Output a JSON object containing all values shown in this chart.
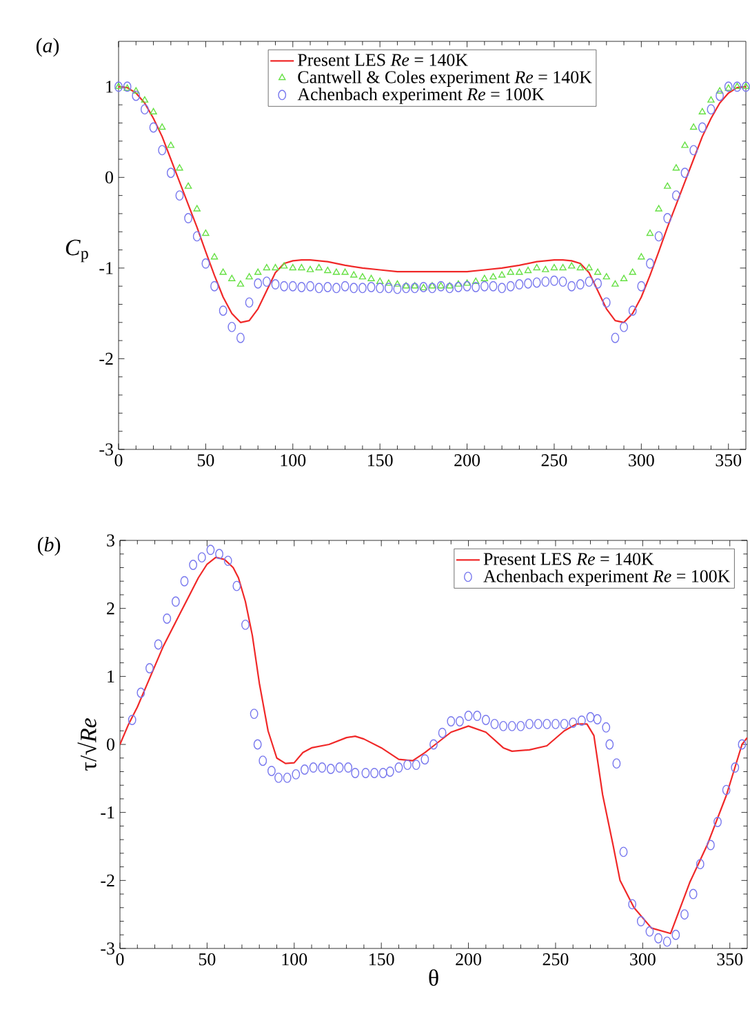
{
  "chart_data": [
    {
      "type": "line",
      "title": "(*a*)",
      "ylabel": "*C*$_{p}$",
      "xlim": [
        0,
        360
      ],
      "xticks": [
        0,
        50,
        100,
        150,
        200,
        250,
        300,
        350
      ],
      "ylim": [
        -3,
        1.5
      ],
      "yticks": [
        -3,
        -2,
        -1,
        0,
        1
      ],
      "legend": "top",
      "grid": false,
      "series": [
        {
          "name": "Present LES *Re* = 140K",
          "color": "#f02828",
          "marker": "none",
          "x": [
            0,
            5,
            10,
            15,
            20,
            25,
            30,
            35,
            40,
            45,
            50,
            55,
            60,
            65,
            70,
            75,
            80,
            85,
            90,
            95,
            100,
            105,
            110,
            120,
            130,
            140,
            150,
            160,
            170,
            180,
            190,
            200,
            210,
            220,
            230,
            240,
            250,
            255,
            260,
            265,
            270,
            275,
            280,
            285,
            290,
            295,
            300,
            305,
            310,
            315,
            320,
            325,
            330,
            335,
            340,
            345,
            350,
            355,
            360
          ],
          "values": [
            1.0,
            0.99,
            0.93,
            0.82,
            0.65,
            0.45,
            0.2,
            -0.05,
            -0.3,
            -0.55,
            -0.82,
            -1.08,
            -1.32,
            -1.5,
            -1.6,
            -1.58,
            -1.45,
            -1.25,
            -1.05,
            -0.95,
            -0.92,
            -0.91,
            -0.91,
            -0.93,
            -0.97,
            -1.0,
            -1.02,
            -1.04,
            -1.04,
            -1.04,
            -1.04,
            -1.04,
            -1.02,
            -1.0,
            -0.97,
            -0.93,
            -0.91,
            -0.91,
            -0.92,
            -0.95,
            -1.05,
            -1.25,
            -1.45,
            -1.58,
            -1.6,
            -1.5,
            -1.32,
            -1.08,
            -0.82,
            -0.55,
            -0.3,
            -0.05,
            0.2,
            0.45,
            0.65,
            0.82,
            0.93,
            0.99,
            1.0
          ]
        },
        {
          "name": "Cantwell & Coles experiment *Re* = 140K",
          "type": "scatter",
          "color": "#66e044",
          "marker": "triangle",
          "x": [
            0,
            5,
            10,
            15,
            20,
            25,
            30,
            35,
            40,
            45,
            50,
            55,
            60,
            65,
            70,
            75,
            80,
            85,
            90,
            95,
            100,
            105,
            110,
            115,
            120,
            125,
            130,
            135,
            140,
            145,
            150,
            155,
            160,
            165,
            170,
            175,
            180,
            185,
            190,
            195,
            200,
            205,
            210,
            215,
            220,
            225,
            230,
            235,
            240,
            245,
            250,
            255,
            260,
            265,
            270,
            275,
            280,
            285,
            290,
            295,
            300,
            305,
            310,
            315,
            320,
            325,
            330,
            335,
            340,
            345,
            350,
            355,
            360
          ],
          "values": [
            1.0,
            0.98,
            0.95,
            0.85,
            0.72,
            0.55,
            0.35,
            0.1,
            -0.1,
            -0.35,
            -0.62,
            -0.88,
            -1.05,
            -1.12,
            -1.18,
            -1.1,
            -1.05,
            -1.0,
            -1.0,
            -0.98,
            -1.0,
            -1.0,
            -1.02,
            -1.0,
            -1.03,
            -1.05,
            -1.05,
            -1.08,
            -1.1,
            -1.12,
            -1.15,
            -1.17,
            -1.18,
            -1.2,
            -1.2,
            -1.22,
            -1.2,
            -1.2,
            -1.2,
            -1.18,
            -1.17,
            -1.15,
            -1.12,
            -1.1,
            -1.08,
            -1.05,
            -1.05,
            -1.03,
            -1.0,
            -1.02,
            -1.0,
            -1.0,
            -0.98,
            -1.0,
            -1.0,
            -1.05,
            -1.1,
            -1.18,
            -1.12,
            -1.05,
            -0.88,
            -0.62,
            -0.35,
            -0.1,
            0.1,
            0.35,
            0.55,
            0.72,
            0.85,
            0.95,
            0.98,
            1.0,
            1.0
          ]
        },
        {
          "name": "Achenbach experiment *Re* = 100K",
          "type": "scatter",
          "color": "#7878ee",
          "marker": "circle",
          "x": [
            0,
            5,
            10,
            15,
            20,
            25,
            30,
            35,
            40,
            45,
            50,
            55,
            60,
            65,
            70,
            75,
            80,
            85,
            90,
            95,
            100,
            105,
            110,
            115,
            120,
            125,
            130,
            135,
            140,
            145,
            150,
            155,
            160,
            165,
            170,
            175,
            180,
            185,
            190,
            195,
            200,
            205,
            210,
            215,
            220,
            225,
            230,
            235,
            240,
            245,
            250,
            255,
            260,
            265,
            270,
            275,
            280,
            285,
            290,
            295,
            300,
            305,
            310,
            315,
            320,
            325,
            330,
            335,
            340,
            345,
            350,
            355,
            360
          ],
          "values": [
            1.0,
            1.0,
            0.9,
            0.75,
            0.55,
            0.3,
            0.05,
            -0.2,
            -0.45,
            -0.65,
            -0.95,
            -1.2,
            -1.47,
            -1.65,
            -1.77,
            -1.38,
            -1.17,
            -1.15,
            -1.18,
            -1.2,
            -1.2,
            -1.21,
            -1.2,
            -1.22,
            -1.21,
            -1.22,
            -1.2,
            -1.22,
            -1.22,
            -1.21,
            -1.22,
            -1.22,
            -1.23,
            -1.22,
            -1.22,
            -1.21,
            -1.22,
            -1.2,
            -1.22,
            -1.21,
            -1.2,
            -1.21,
            -1.2,
            -1.2,
            -1.22,
            -1.2,
            -1.18,
            -1.17,
            -1.16,
            -1.15,
            -1.14,
            -1.15,
            -1.2,
            -1.18,
            -1.15,
            -1.17,
            -1.38,
            -1.77,
            -1.65,
            -1.47,
            -1.2,
            -0.95,
            -0.65,
            -0.45,
            -0.2,
            0.05,
            0.3,
            0.55,
            0.75,
            0.9,
            1.0,
            1.0,
            1.0
          ]
        }
      ]
    },
    {
      "type": "line",
      "title": "(*b*)",
      "xlabel": "θ",
      "ylabel": "τ/√*Re*",
      "xlim": [
        0,
        360
      ],
      "xticks": [
        0,
        50,
        100,
        150,
        200,
        250,
        300,
        350
      ],
      "ylim": [
        -3,
        3
      ],
      "yticks": [
        -3,
        -2,
        -1,
        0,
        1,
        2,
        3
      ],
      "legend": "top right",
      "grid": false,
      "series": [
        {
          "name": "Present LES *Re* = 140K",
          "color": "#f02828",
          "marker": "none",
          "x": [
            0,
            5,
            10,
            15,
            20,
            25,
            30,
            35,
            40,
            45,
            50,
            55,
            60,
            65,
            68,
            72,
            76,
            80,
            85,
            90,
            95,
            100,
            105,
            110,
            120,
            130,
            135,
            140,
            150,
            160,
            168,
            175,
            181,
            190,
            200,
            210,
            220,
            225,
            235,
            245,
            255,
            262,
            268,
            272,
            277,
            283,
            287,
            295,
            305,
            316,
            327,
            337,
            348,
            357,
            360
          ],
          "values": [
            0.0,
            0.3,
            0.55,
            0.85,
            1.15,
            1.45,
            1.7,
            1.95,
            2.2,
            2.45,
            2.65,
            2.75,
            2.72,
            2.6,
            2.45,
            2.1,
            1.6,
            0.9,
            0.2,
            -0.2,
            -0.28,
            -0.27,
            -0.12,
            -0.05,
            0.0,
            0.1,
            0.12,
            0.08,
            -0.05,
            -0.22,
            -0.24,
            -0.12,
            0.0,
            0.18,
            0.27,
            0.18,
            -0.05,
            -0.1,
            -0.08,
            -0.02,
            0.2,
            0.3,
            0.3,
            0.13,
            -0.74,
            -1.48,
            -2.0,
            -2.4,
            -2.7,
            -2.78,
            -2.03,
            -1.48,
            -0.75,
            0.0,
            0.1
          ]
        },
        {
          "name": "Achenbach experiment *Re* = 100K",
          "type": "scatter",
          "color": "#7878ee",
          "marker": "circle",
          "x": [
            7,
            12,
            17,
            22,
            27,
            32,
            37,
            42,
            47,
            52,
            57,
            62,
            67,
            72,
            77,
            79,
            82,
            87,
            91,
            96,
            101,
            106,
            111,
            116,
            121,
            126,
            131,
            135,
            141,
            146,
            151,
            155,
            160,
            165,
            170,
            175,
            180,
            185,
            190,
            195,
            200,
            205,
            210,
            215,
            220,
            225,
            230,
            235,
            240,
            245,
            250,
            255,
            260,
            265,
            270,
            274,
            279,
            281,
            285,
            289,
            294,
            299,
            304,
            309,
            314,
            319,
            324,
            329,
            333,
            339,
            343,
            348,
            353,
            357
          ],
          "values": [
            0.36,
            0.76,
            1.12,
            1.47,
            1.85,
            2.1,
            2.4,
            2.64,
            2.75,
            2.86,
            2.8,
            2.7,
            2.33,
            1.76,
            0.45,
            0.0,
            -0.24,
            -0.39,
            -0.49,
            -0.49,
            -0.44,
            -0.37,
            -0.34,
            -0.34,
            -0.36,
            -0.34,
            -0.34,
            -0.42,
            -0.42,
            -0.42,
            -0.42,
            -0.4,
            -0.34,
            -0.3,
            -0.3,
            -0.22,
            0.0,
            0.17,
            0.34,
            0.34,
            0.42,
            0.42,
            0.36,
            0.3,
            0.27,
            0.27,
            0.27,
            0.3,
            0.3,
            0.3,
            0.3,
            0.3,
            0.32,
            0.35,
            0.4,
            0.37,
            0.25,
            0.0,
            -0.28,
            -1.58,
            -2.35,
            -2.6,
            -2.75,
            -2.85,
            -2.9,
            -2.8,
            -2.5,
            -2.2,
            -1.76,
            -1.48,
            -1.14,
            -0.67,
            -0.34,
            0.0
          ]
        }
      ]
    }
  ]
}
